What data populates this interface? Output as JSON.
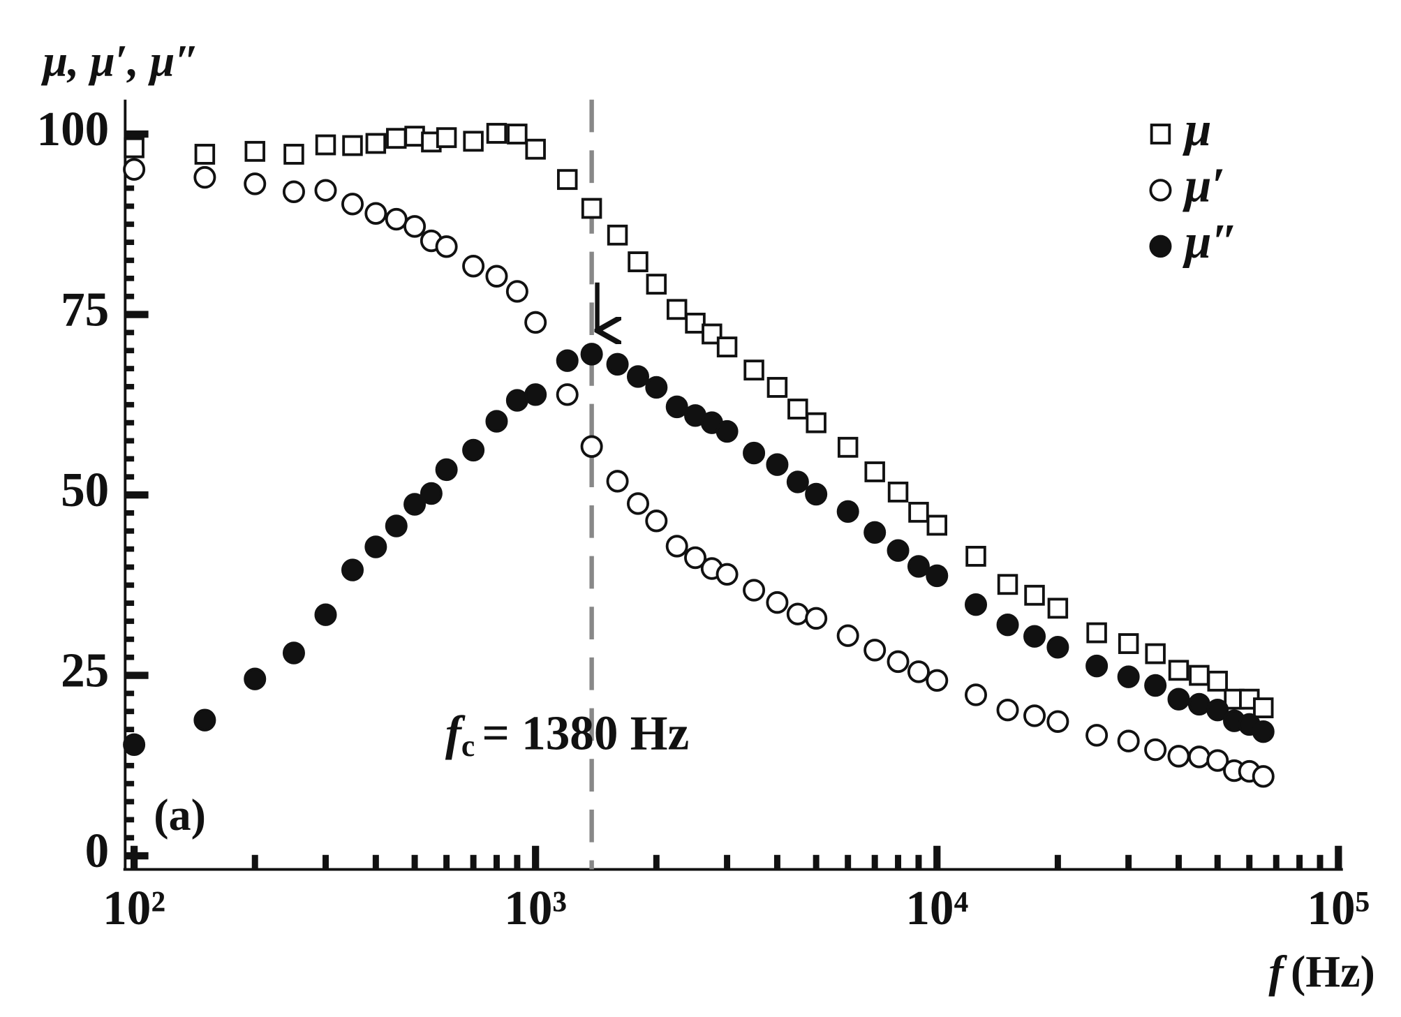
{
  "chart_data": {
    "type": "scatter",
    "y_label": "μ, μ′, μ″",
    "x_label": {
      "symbol": "f",
      "unit": "(Hz)"
    },
    "panel_label": "(a)",
    "annotation": {
      "symbol": "f",
      "subscript": "c",
      "text": "= 1380 Hz",
      "x": 1380
    },
    "xlog": true,
    "xlim": [
      100,
      100000
    ],
    "ylim": [
      0,
      100
    ],
    "xticks": [
      {
        "value": 100,
        "label": "10²"
      },
      {
        "value": 1000,
        "label": "10³"
      },
      {
        "value": 10000,
        "label": "10⁴"
      },
      {
        "value": 100000,
        "label": "10⁵"
      }
    ],
    "yticks": [
      0,
      25,
      50,
      75,
      100
    ],
    "legend": "top-right",
    "x": [
      100,
      150,
      200,
      250,
      300,
      350,
      400,
      450,
      500,
      550,
      600,
      700,
      800,
      900,
      1000,
      1200,
      1380,
      1600,
      1800,
      2000,
      2250,
      2500,
      2750,
      3000,
      3500,
      4000,
      4500,
      5000,
      6000,
      7000,
      8000,
      9000,
      10000,
      12500,
      15000,
      17500,
      20000,
      25000,
      30000,
      35000,
      40000,
      45000,
      50000,
      55000,
      60000,
      65000
    ],
    "series": [
      {
        "name": "μ",
        "color": "#111111",
        "marker": "square",
        "filled": false,
        "values": [
          98.1,
          97.2,
          97.6,
          97.2,
          98.5,
          98.4,
          98.7,
          99.4,
          99.7,
          98.9,
          99.5,
          99,
          100.1,
          100,
          97.9,
          93.7,
          89.7,
          86,
          82.3,
          79.2,
          75.7,
          73.8,
          72.3,
          70.5,
          67.3,
          64.9,
          61.9,
          60,
          56.6,
          53.2,
          50.4,
          47.6,
          45.8,
          41.5,
          37.6,
          36.1,
          34.3,
          30.9,
          29.4,
          28,
          25.7,
          25,
          24.2,
          21.7,
          21.7,
          20.5
        ]
      },
      {
        "name": "μ′",
        "color": "#111111",
        "marker": "circle",
        "filled": false,
        "values": [
          95.1,
          94,
          93.1,
          92,
          92.2,
          90.3,
          89,
          88.2,
          87.2,
          85.2,
          84.4,
          81.7,
          80.3,
          78.2,
          73.9,
          63.9,
          56.7,
          51.9,
          48.8,
          46.4,
          42.9,
          41.3,
          39.8,
          39,
          36.8,
          35.1,
          33.5,
          32.9,
          30.5,
          28.5,
          26.9,
          25.5,
          24.3,
          22.3,
          20.2,
          19.4,
          18.6,
          16.7,
          15.9,
          14.7,
          13.8,
          13.7,
          13.2,
          11.8,
          11.7,
          11
        ]
      },
      {
        "name": "μ″",
        "color": "#111111",
        "marker": "circle",
        "filled": true,
        "values": [
          15.4,
          18.8,
          24.5,
          28.1,
          33.4,
          39.6,
          42.8,
          45.7,
          48.7,
          50.2,
          53.5,
          56.2,
          60.2,
          63.1,
          63.9,
          68.6,
          69.5,
          68.1,
          66.4,
          64.9,
          62.2,
          61,
          60,
          58.8,
          55.8,
          54.2,
          51.8,
          50.1,
          47.7,
          44.8,
          42.3,
          40.1,
          38.8,
          34.8,
          32,
          30.4,
          28.9,
          26.3,
          24.8,
          23.6,
          21.7,
          21,
          20.2,
          18.7,
          18.2,
          17.2
        ]
      }
    ]
  }
}
